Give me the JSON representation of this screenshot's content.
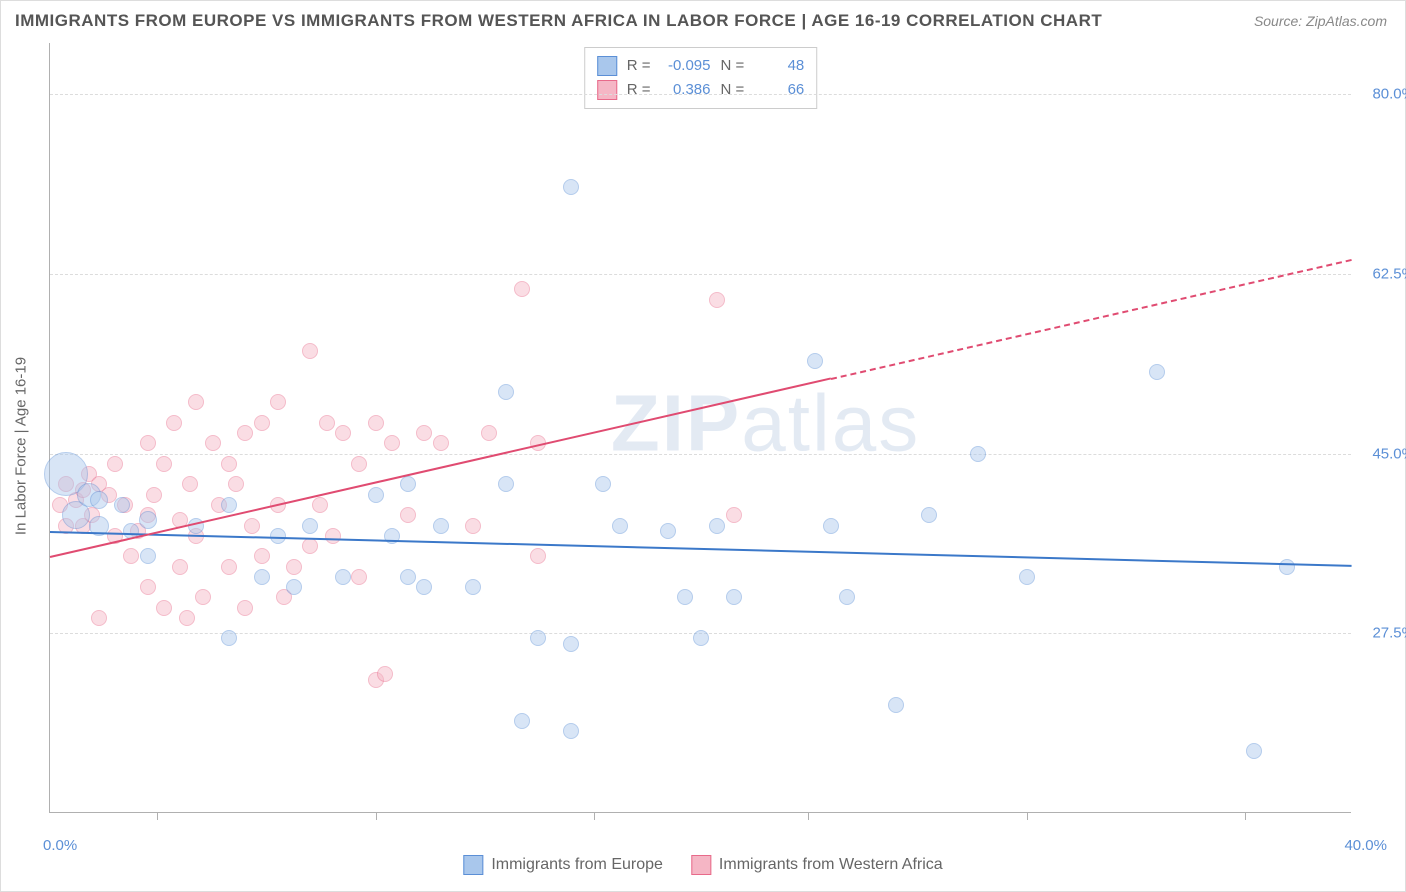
{
  "title": "IMMIGRANTS FROM EUROPE VS IMMIGRANTS FROM WESTERN AFRICA IN LABOR FORCE | AGE 16-19 CORRELATION CHART",
  "source": "Source: ZipAtlas.com",
  "watermark": {
    "bold": "ZIP",
    "thin": "atlas"
  },
  "y_axis_title": "In Labor Force | Age 16-19",
  "chart": {
    "type": "scatter",
    "xlim": [
      0,
      40
    ],
    "ylim": [
      10,
      85
    ],
    "x_ticks": [
      0,
      40
    ],
    "y_ticks": [
      27.5,
      45.0,
      62.5,
      80.0
    ],
    "x_tick_labels": [
      "0.0%",
      "40.0%"
    ],
    "y_tick_labels": [
      "27.5%",
      "45.0%",
      "62.5%",
      "80.0%"
    ],
    "x_gridlines": [
      3.3,
      10,
      16.7,
      23.3,
      30,
      36.7
    ],
    "background_color": "#ffffff",
    "grid_color": "#dcdcdc",
    "axis_color": "#b0b0b0",
    "label_color": "#5b8fd6",
    "title_color": "#555555"
  },
  "series": [
    {
      "name": "Immigrants from Europe",
      "fill": "#a9c7ec",
      "stroke": "#5b8fd6",
      "fill_opacity": 0.45,
      "R": "-0.095",
      "N": "48",
      "trend": {
        "x1": 0,
        "y1": 37.5,
        "x2": 40,
        "y2": 34.2,
        "color": "#3b78c9",
        "width": 2.5
      },
      "points": [
        {
          "x": 0.5,
          "y": 43,
          "r": 22
        },
        {
          "x": 0.8,
          "y": 39,
          "r": 14
        },
        {
          "x": 1.2,
          "y": 41,
          "r": 12
        },
        {
          "x": 1.5,
          "y": 38,
          "r": 10
        },
        {
          "x": 1.5,
          "y": 40.5,
          "r": 9
        },
        {
          "x": 2.2,
          "y": 40,
          "r": 8
        },
        {
          "x": 2.5,
          "y": 37.5,
          "r": 8
        },
        {
          "x": 3,
          "y": 38.5,
          "r": 9
        },
        {
          "x": 3,
          "y": 35,
          "r": 8
        },
        {
          "x": 4.5,
          "y": 38,
          "r": 8
        },
        {
          "x": 5.5,
          "y": 27,
          "r": 8
        },
        {
          "x": 5.5,
          "y": 40,
          "r": 8
        },
        {
          "x": 6.5,
          "y": 33,
          "r": 8
        },
        {
          "x": 7,
          "y": 37,
          "r": 8
        },
        {
          "x": 7.5,
          "y": 32,
          "r": 8
        },
        {
          "x": 8,
          "y": 38,
          "r": 8
        },
        {
          "x": 9,
          "y": 33,
          "r": 8
        },
        {
          "x": 10,
          "y": 41,
          "r": 8
        },
        {
          "x": 10.5,
          "y": 37,
          "r": 8
        },
        {
          "x": 11,
          "y": 33,
          "r": 8
        },
        {
          "x": 11,
          "y": 42,
          "r": 8
        },
        {
          "x": 11.5,
          "y": 32,
          "r": 8
        },
        {
          "x": 12,
          "y": 38,
          "r": 8
        },
        {
          "x": 13,
          "y": 32,
          "r": 8
        },
        {
          "x": 14,
          "y": 51,
          "r": 8
        },
        {
          "x": 14,
          "y": 42,
          "r": 8
        },
        {
          "x": 14.5,
          "y": 19,
          "r": 8
        },
        {
          "x": 15,
          "y": 27,
          "r": 8
        },
        {
          "x": 16,
          "y": 18,
          "r": 8
        },
        {
          "x": 16,
          "y": 26.5,
          "r": 8
        },
        {
          "x": 16,
          "y": 71,
          "r": 8
        },
        {
          "x": 17,
          "y": 42,
          "r": 8
        },
        {
          "x": 17.5,
          "y": 38,
          "r": 8
        },
        {
          "x": 19,
          "y": 37.5,
          "r": 8
        },
        {
          "x": 19.5,
          "y": 31,
          "r": 8
        },
        {
          "x": 20,
          "y": 27,
          "r": 8
        },
        {
          "x": 20.5,
          "y": 38,
          "r": 8
        },
        {
          "x": 21,
          "y": 31,
          "r": 8
        },
        {
          "x": 23.5,
          "y": 54,
          "r": 8
        },
        {
          "x": 24,
          "y": 38,
          "r": 8
        },
        {
          "x": 24.5,
          "y": 31,
          "r": 8
        },
        {
          "x": 26,
          "y": 20.5,
          "r": 8
        },
        {
          "x": 27,
          "y": 39,
          "r": 8
        },
        {
          "x": 28.5,
          "y": 45,
          "r": 8
        },
        {
          "x": 30,
          "y": 33,
          "r": 8
        },
        {
          "x": 34,
          "y": 53,
          "r": 8
        },
        {
          "x": 37,
          "y": 16,
          "r": 8
        },
        {
          "x": 38,
          "y": 34,
          "r": 8
        }
      ]
    },
    {
      "name": "Immigrants from Western Africa",
      "fill": "#f5b6c5",
      "stroke": "#e86a8a",
      "fill_opacity": 0.45,
      "R": "0.386",
      "N": "66",
      "trend": {
        "x1": 0,
        "y1": 35,
        "x2": 40,
        "y2": 64,
        "color": "#e04b71",
        "width": 2.5,
        "dash_after_x": 24
      },
      "points": [
        {
          "x": 0.3,
          "y": 40,
          "r": 8
        },
        {
          "x": 0.5,
          "y": 42,
          "r": 8
        },
        {
          "x": 0.5,
          "y": 38,
          "r": 8
        },
        {
          "x": 0.8,
          "y": 40.5,
          "r": 8
        },
        {
          "x": 1,
          "y": 41.5,
          "r": 8
        },
        {
          "x": 1,
          "y": 38,
          "r": 8
        },
        {
          "x": 1.2,
          "y": 43,
          "r": 8
        },
        {
          "x": 1.3,
          "y": 39,
          "r": 8
        },
        {
          "x": 1.5,
          "y": 42,
          "r": 8
        },
        {
          "x": 1.5,
          "y": 29,
          "r": 8
        },
        {
          "x": 1.8,
          "y": 41,
          "r": 8
        },
        {
          "x": 2,
          "y": 44,
          "r": 8
        },
        {
          "x": 2,
          "y": 37,
          "r": 8
        },
        {
          "x": 2.3,
          "y": 40,
          "r": 8
        },
        {
          "x": 2.5,
          "y": 35,
          "r": 8
        },
        {
          "x": 2.7,
          "y": 37.5,
          "r": 8
        },
        {
          "x": 3,
          "y": 46,
          "r": 8
        },
        {
          "x": 3,
          "y": 32,
          "r": 8
        },
        {
          "x": 3,
          "y": 39,
          "r": 8
        },
        {
          "x": 3.2,
          "y": 41,
          "r": 8
        },
        {
          "x": 3.5,
          "y": 30,
          "r": 8
        },
        {
          "x": 3.5,
          "y": 44,
          "r": 8
        },
        {
          "x": 3.8,
          "y": 48,
          "r": 8
        },
        {
          "x": 4,
          "y": 38.5,
          "r": 8
        },
        {
          "x": 4,
          "y": 34,
          "r": 8
        },
        {
          "x": 4.2,
          "y": 29,
          "r": 8
        },
        {
          "x": 4.3,
          "y": 42,
          "r": 8
        },
        {
          "x": 4.5,
          "y": 50,
          "r": 8
        },
        {
          "x": 4.5,
          "y": 37,
          "r": 8
        },
        {
          "x": 4.7,
          "y": 31,
          "r": 8
        },
        {
          "x": 5,
          "y": 46,
          "r": 8
        },
        {
          "x": 5.2,
          "y": 40,
          "r": 8
        },
        {
          "x": 5.5,
          "y": 44,
          "r": 8
        },
        {
          "x": 5.5,
          "y": 34,
          "r": 8
        },
        {
          "x": 5.7,
          "y": 42,
          "r": 8
        },
        {
          "x": 6,
          "y": 30,
          "r": 8
        },
        {
          "x": 6,
          "y": 47,
          "r": 8
        },
        {
          "x": 6.2,
          "y": 38,
          "r": 8
        },
        {
          "x": 6.5,
          "y": 48,
          "r": 8
        },
        {
          "x": 6.5,
          "y": 35,
          "r": 8
        },
        {
          "x": 7,
          "y": 50,
          "r": 8
        },
        {
          "x": 7,
          "y": 40,
          "r": 8
        },
        {
          "x": 7.2,
          "y": 31,
          "r": 8
        },
        {
          "x": 7.5,
          "y": 34,
          "r": 8
        },
        {
          "x": 8,
          "y": 55,
          "r": 8
        },
        {
          "x": 8,
          "y": 36,
          "r": 8
        },
        {
          "x": 8.3,
          "y": 40,
          "r": 8
        },
        {
          "x": 8.5,
          "y": 48,
          "r": 8
        },
        {
          "x": 8.7,
          "y": 37,
          "r": 8
        },
        {
          "x": 9,
          "y": 47,
          "r": 8
        },
        {
          "x": 9.5,
          "y": 33,
          "r": 8
        },
        {
          "x": 9.5,
          "y": 44,
          "r": 8
        },
        {
          "x": 10,
          "y": 48,
          "r": 8
        },
        {
          "x": 10,
          "y": 23,
          "r": 8
        },
        {
          "x": 10.3,
          "y": 23.5,
          "r": 8
        },
        {
          "x": 10.5,
          "y": 46,
          "r": 8
        },
        {
          "x": 11,
          "y": 39,
          "r": 8
        },
        {
          "x": 11.5,
          "y": 47,
          "r": 8
        },
        {
          "x": 12,
          "y": 46,
          "r": 8
        },
        {
          "x": 13,
          "y": 38,
          "r": 8
        },
        {
          "x": 13.5,
          "y": 47,
          "r": 8
        },
        {
          "x": 14.5,
          "y": 61,
          "r": 8
        },
        {
          "x": 15,
          "y": 35,
          "r": 8
        },
        {
          "x": 15,
          "y": 46,
          "r": 8
        },
        {
          "x": 20.5,
          "y": 60,
          "r": 8
        },
        {
          "x": 21,
          "y": 39,
          "r": 8
        }
      ]
    }
  ],
  "stats_legend_labels": {
    "R": "R =",
    "N": "N ="
  },
  "bottom_legend": [
    {
      "label": "Immigrants from Europe",
      "fill": "#a9c7ec",
      "stroke": "#5b8fd6"
    },
    {
      "label": "Immigrants from Western Africa",
      "fill": "#f5b6c5",
      "stroke": "#e86a8a"
    }
  ]
}
